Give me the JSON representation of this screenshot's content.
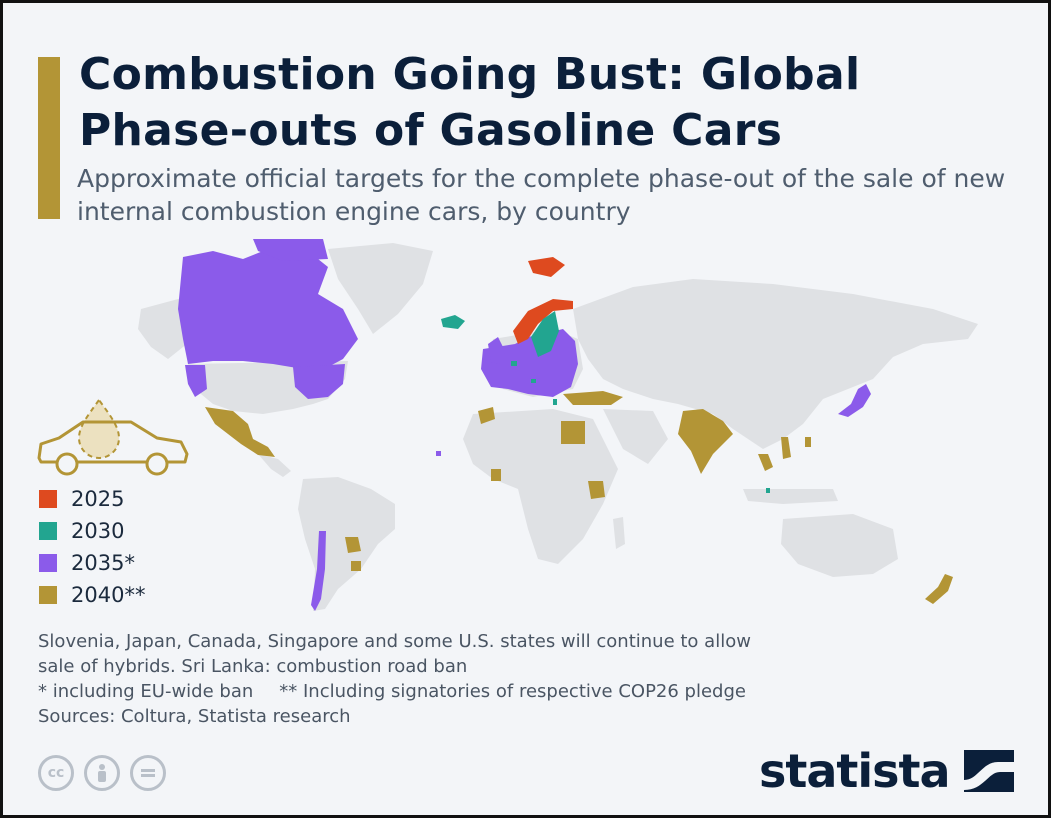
{
  "header": {
    "title": "Combustion Going Bust: Global Phase-outs of Gasoline Cars",
    "subtitle": "Approximate official targets for the complete phase-out of the sale of new internal combustion engine cars, by country",
    "accent_color": "#b39536"
  },
  "colors": {
    "land": "#dfe1e4",
    "y2025": "#de4a1f",
    "y2030": "#22a590",
    "y2035": "#8b5bea",
    "y2040": "#b39536"
  },
  "legend": {
    "items": [
      {
        "label": "2025",
        "color": "#de4a1f"
      },
      {
        "label": "2030",
        "color": "#22a590"
      },
      {
        "label": "2035*",
        "color": "#8b5bea"
      },
      {
        "label": "2040**",
        "color": "#b39536"
      }
    ]
  },
  "map": {
    "categories": {
      "2025": [
        "Norway"
      ],
      "2030": [
        "Iceland",
        "Sweden",
        "Netherlands",
        "Slovenia",
        "Israel",
        "Singapore"
      ],
      "2035": [
        "Canada",
        "some U.S. states",
        "European Union",
        "United Kingdom",
        "Japan",
        "Chile",
        "Cape Verde"
      ],
      "2040": [
        "Mexico",
        "Turkey",
        "Egypt",
        "India",
        "Thailand",
        "Vietnam",
        "Philippines",
        "Kenya",
        "Ghana",
        "Paraguay",
        "Uruguay",
        "New Zealand",
        "Morocco"
      ]
    }
  },
  "notes": {
    "line1": "Slovenia, Japan, Canada, Singapore and some U.S. states will continue to allow",
    "line2": "sale of hybrids. Sri Lanka: combustion road ban",
    "footnote1": "* including EU-wide ban",
    "footnote2": "** Including signatories of respective COP26 pledge",
    "sources": "Sources: Coltura, Statista research"
  },
  "footer": {
    "license_icons": [
      "cc-icon",
      "attribution-icon",
      "no-derivatives-icon"
    ],
    "brand": "statista"
  }
}
